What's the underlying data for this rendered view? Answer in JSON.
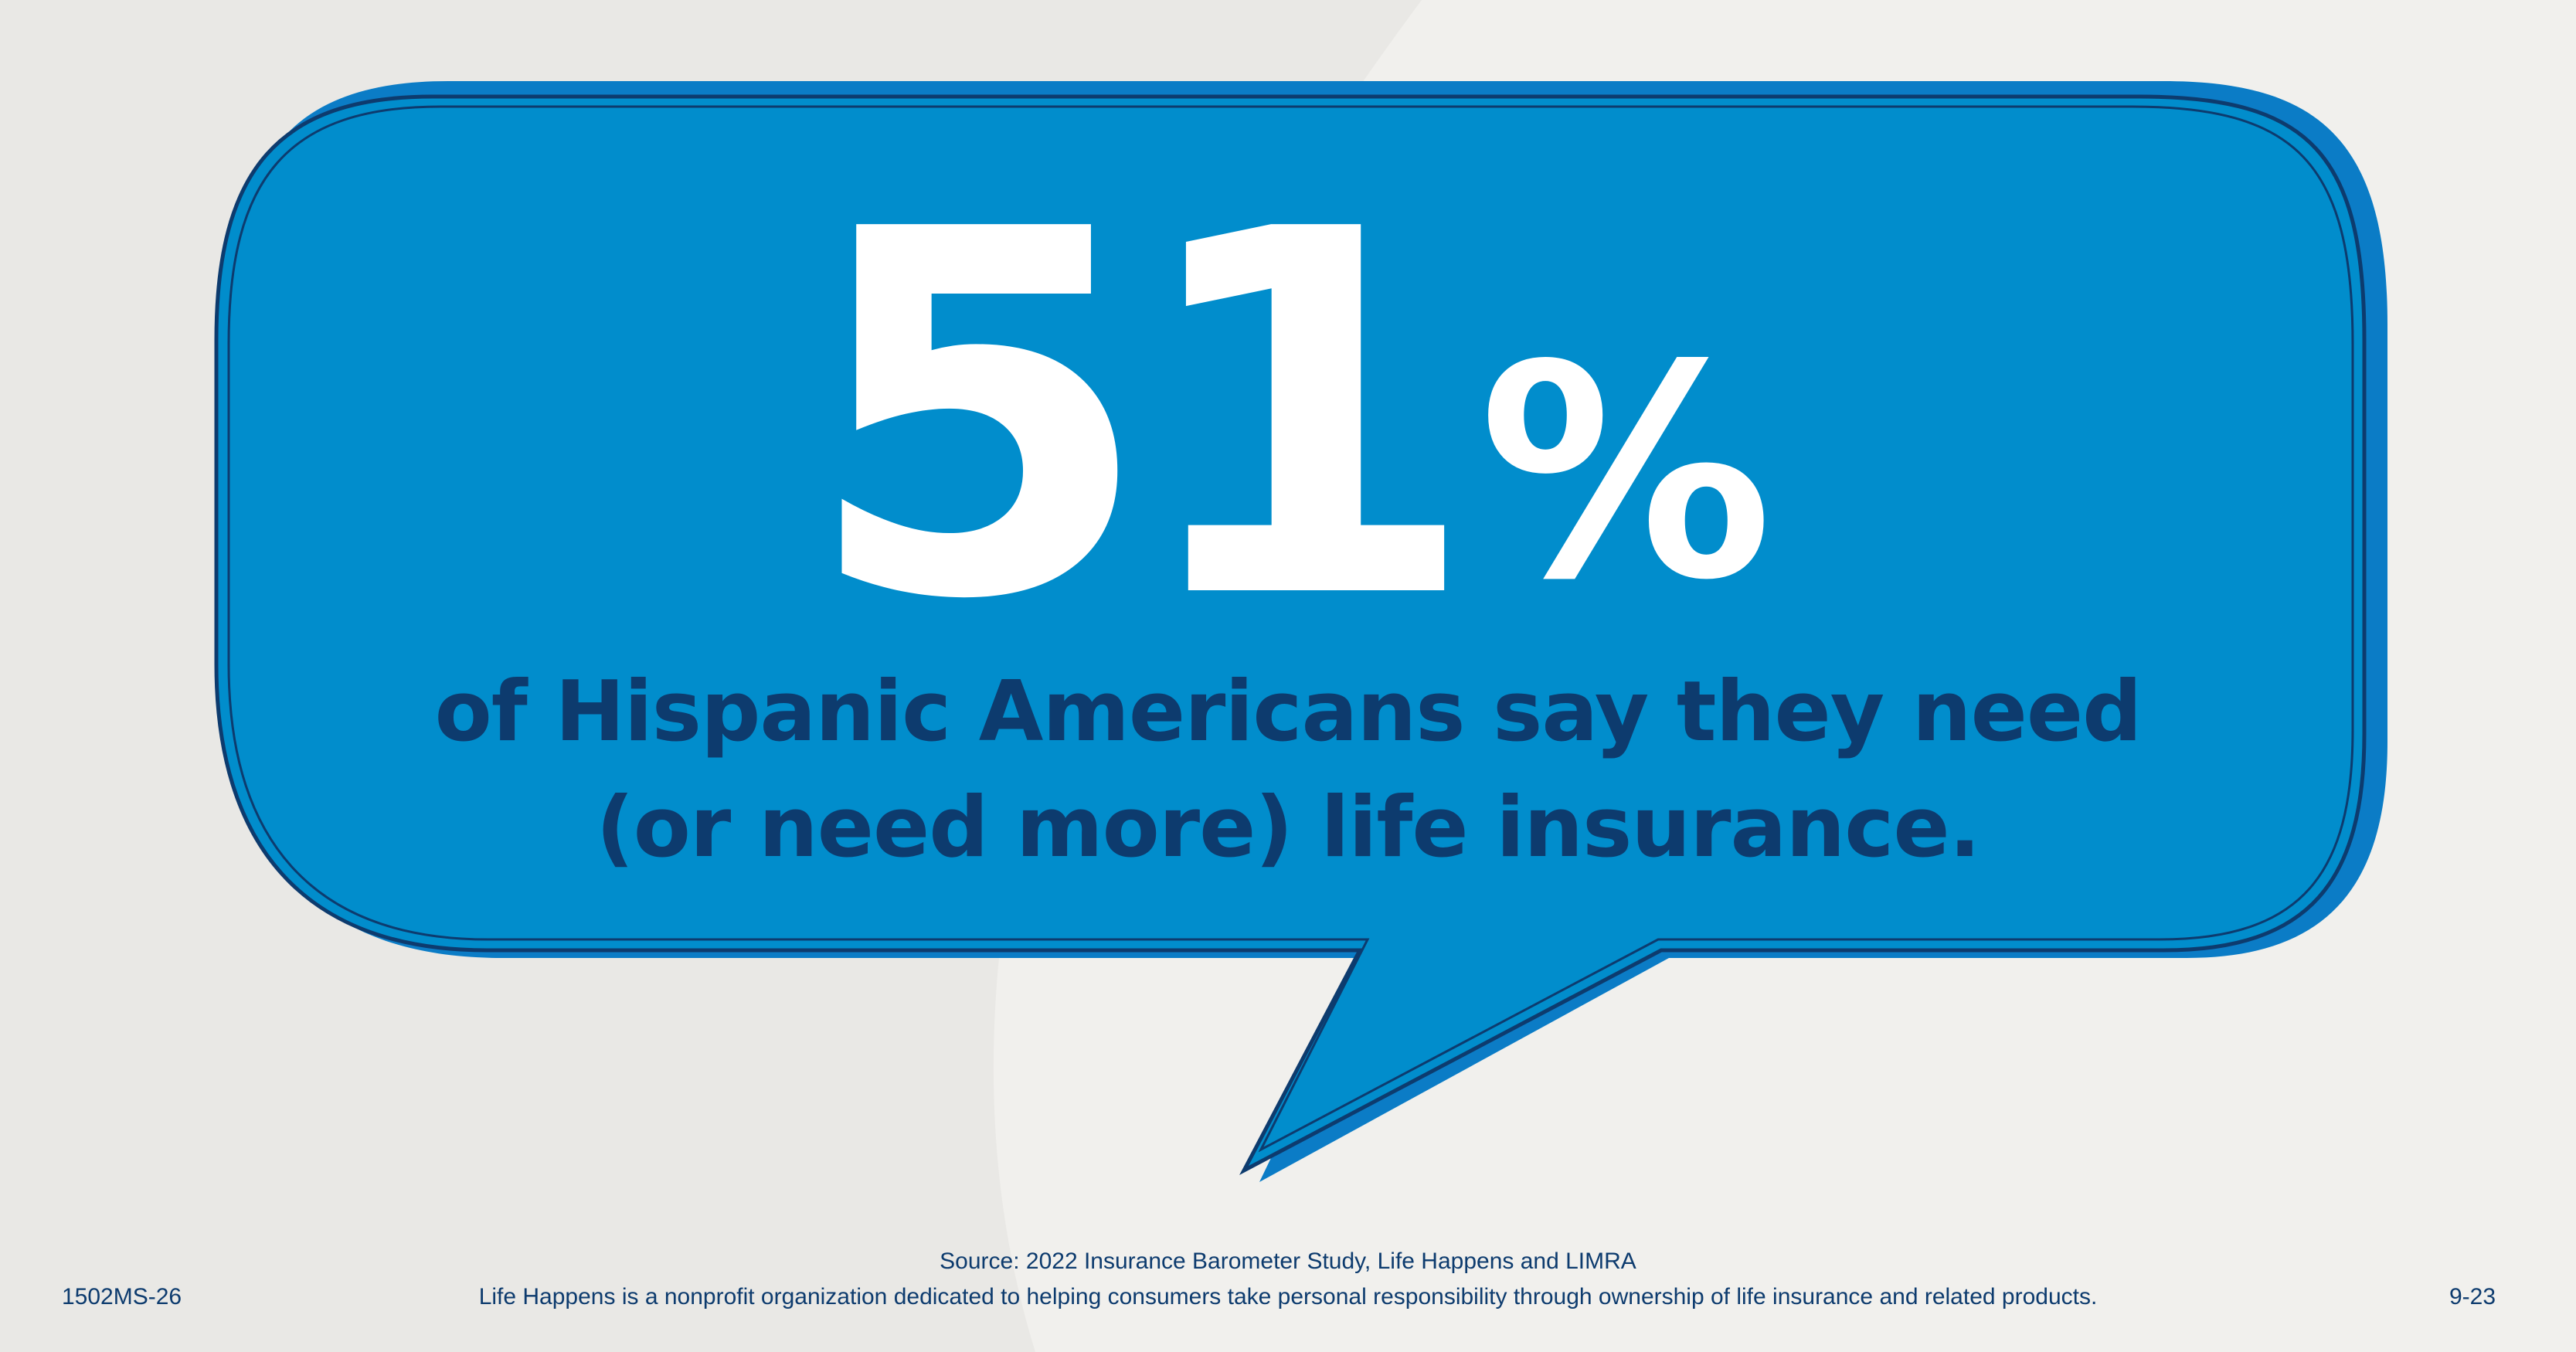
{
  "stat": {
    "value": "51",
    "unit": "%",
    "fraction": 0.51
  },
  "headline": {
    "line1": "of Hispanic Americans say they need",
    "line2": "(or need more) life insurance."
  },
  "footer": {
    "source": "Source: 2022 Insurance Barometer Study, Life Happens and LIMRA",
    "about": "Life Happens is a nonprofit organization dedicated to helping consumers take personal responsibility through ownership of life insurance and related products.",
    "code_left": "1502MS-26",
    "code_right": "9-23"
  },
  "colors": {
    "background": "#e9e8e5",
    "background_shape": "#f1f0ed",
    "bubble_fill": "#018dcc",
    "bubble_shadow": "#0b7cc6",
    "outline": "#0d3b6e",
    "stat_text": "#ffffff",
    "headline_text": "#0d3b6e"
  },
  "icons": {
    "bubble": "speech-bubble-shape"
  }
}
